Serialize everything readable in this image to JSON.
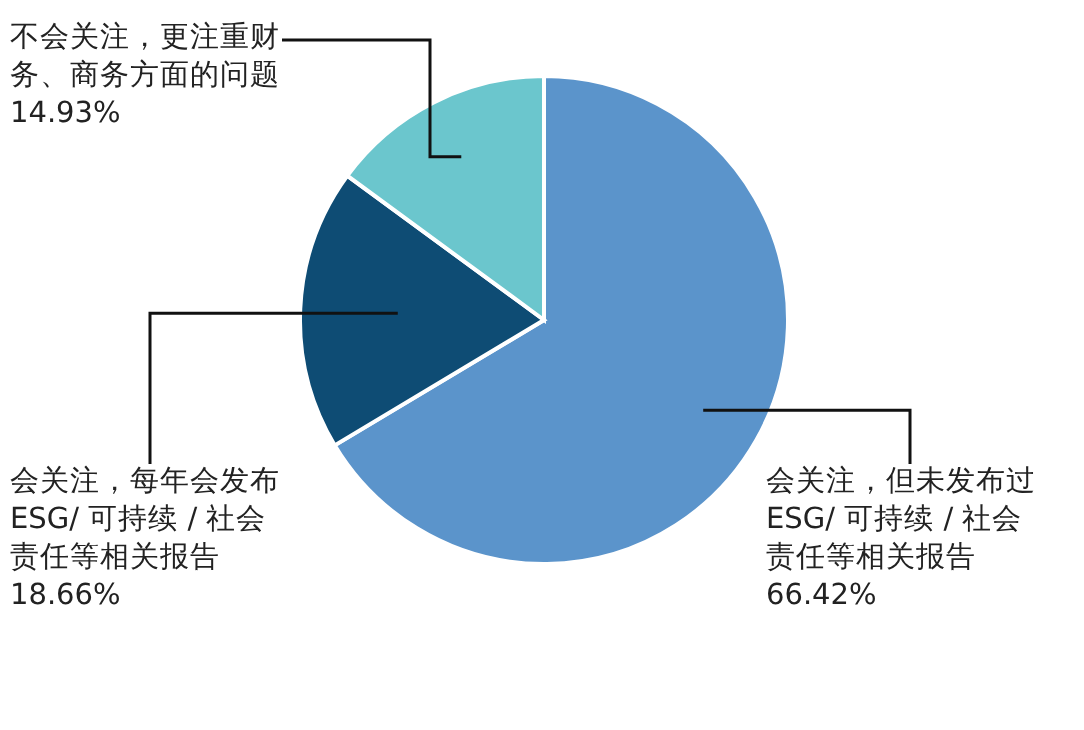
{
  "chart_data": {
    "type": "pie",
    "categories": [
      "会关注，但未发布过ESG/ 可持续 / 社会责任等相关报告",
      "会关注，每年会发布ESG/ 可持续 / 社会责任等相关报告",
      "不会关注，更注重财务、商务方面的问题"
    ],
    "values": [
      66.42,
      18.66,
      14.93
    ],
    "value_labels": [
      "66.42%",
      "18.66%",
      "14.93%"
    ],
    "colors": [
      "#5b94cb",
      "#0e4c74",
      "#6bc6cd"
    ]
  }
}
